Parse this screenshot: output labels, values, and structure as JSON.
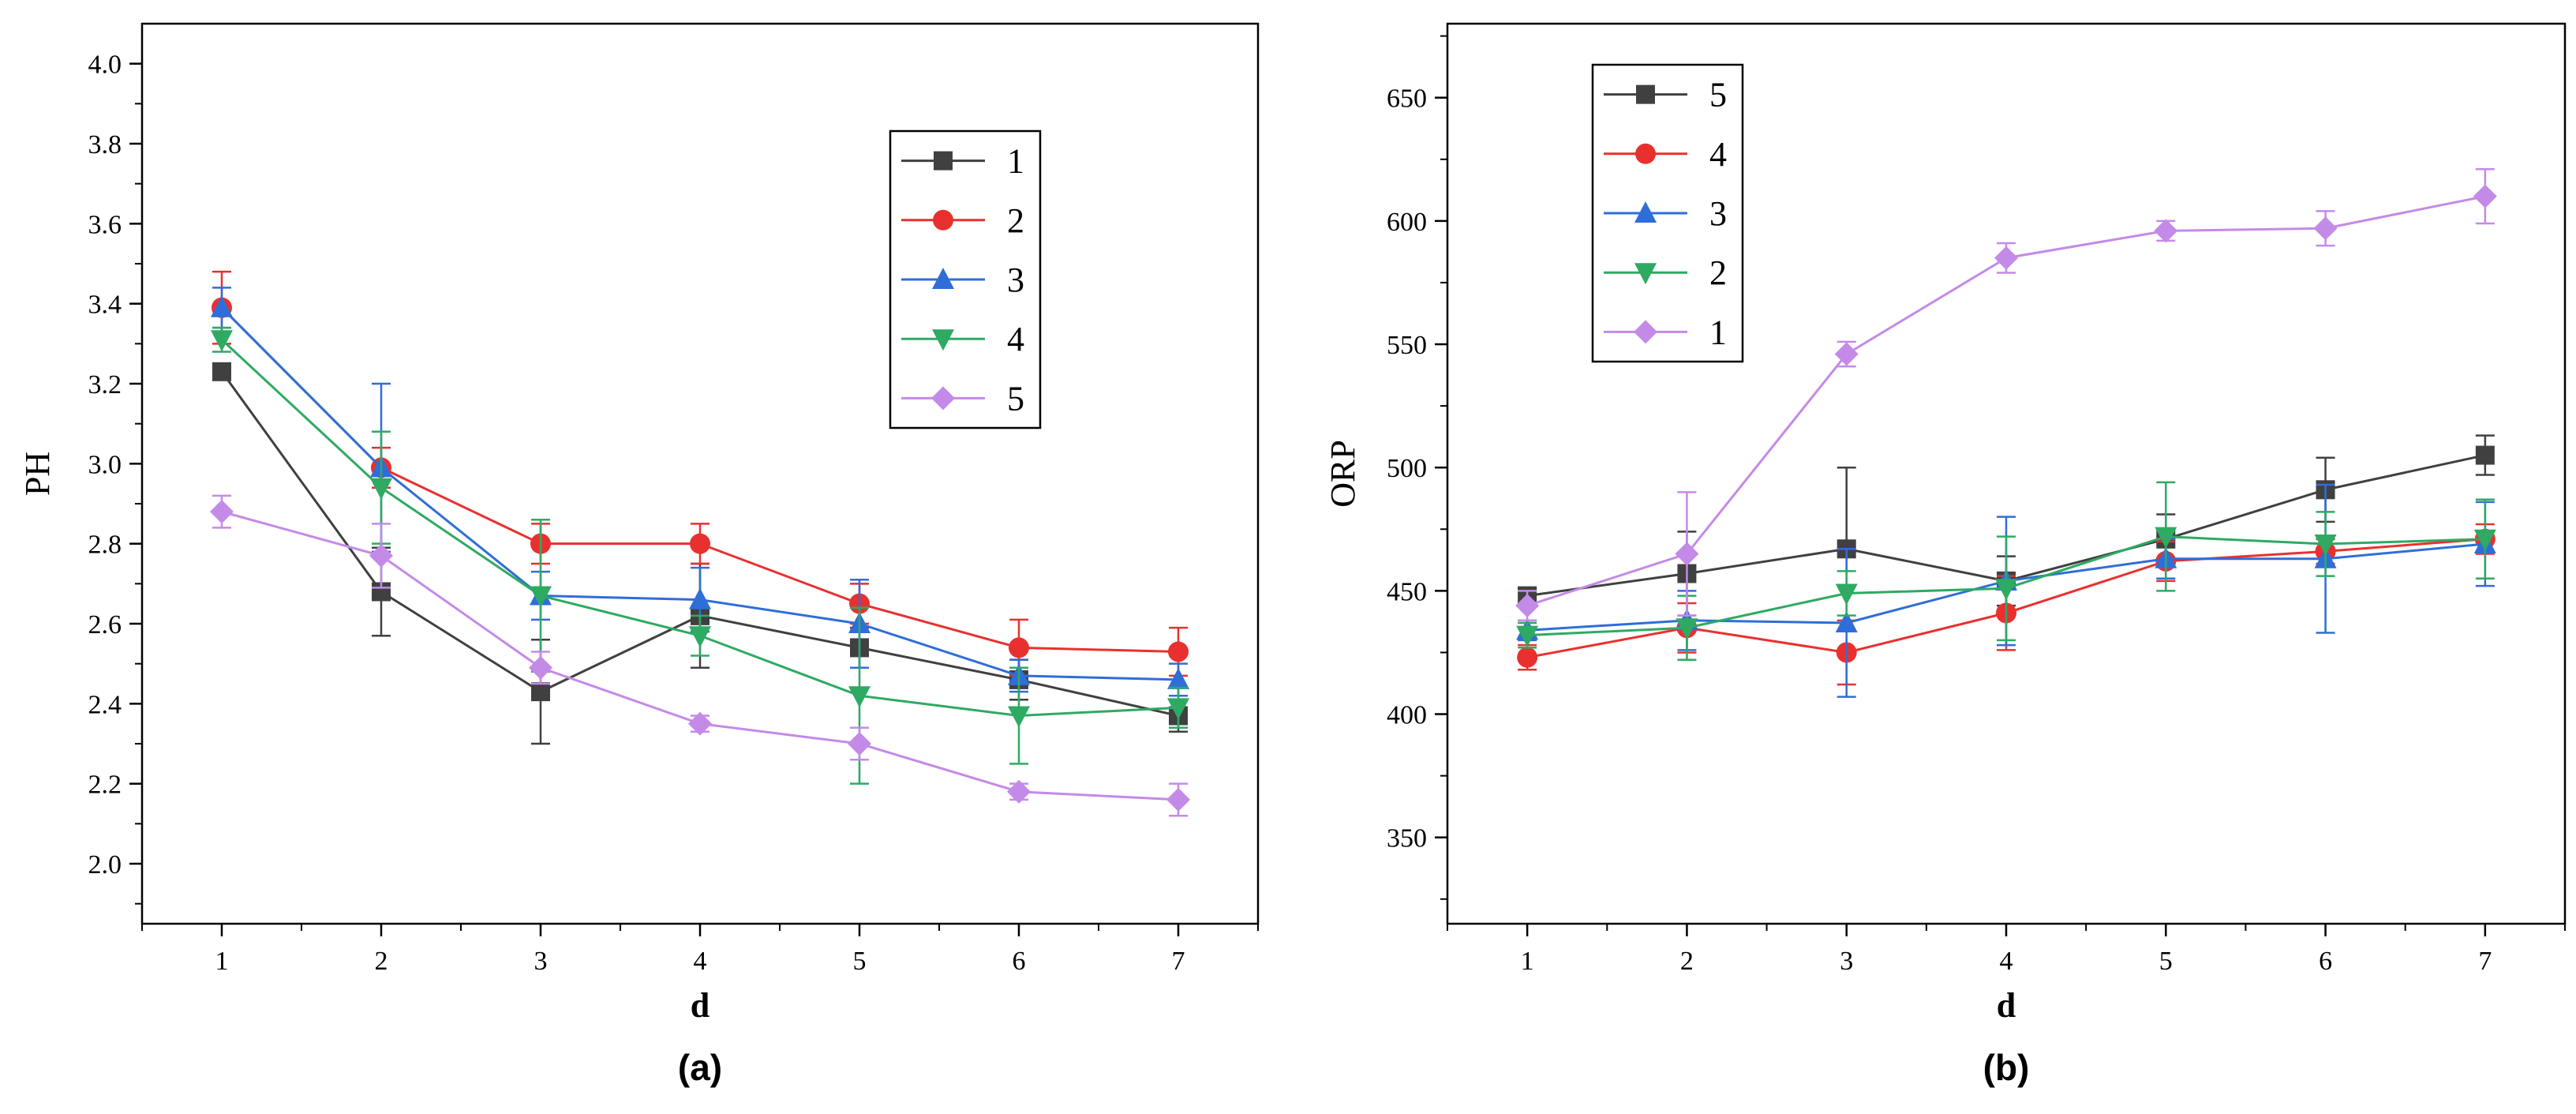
{
  "chart_data": [
    {
      "type": "line",
      "panel_label": "(a)",
      "xlabel": "d",
      "ylabel": "PH",
      "x": [
        1,
        2,
        3,
        4,
        5,
        6,
        7
      ],
      "xlim": [
        0.5,
        7.5
      ],
      "ylim": [
        1.85,
        4.1
      ],
      "yticks": [
        2.0,
        2.2,
        2.4,
        2.6,
        2.8,
        3.0,
        3.2,
        3.4,
        3.6,
        3.8,
        4.0
      ],
      "ytick_labels": [
        "2.0",
        "2.2",
        "2.4",
        "2.6",
        "2.8",
        "3.0",
        "3.2",
        "3.4",
        "3.6",
        "3.8",
        "4.0"
      ],
      "xtick_labels": [
        "1",
        "2",
        "3",
        "4",
        "5",
        "6",
        "7"
      ],
      "legend_position": "top-right",
      "grid": false,
      "series": [
        {
          "name": "1",
          "color": "#404040",
          "marker": "square",
          "values": [
            3.23,
            2.68,
            2.43,
            2.62,
            2.54,
            2.46,
            2.37
          ],
          "errors": [
            0.02,
            0.11,
            0.13,
            0.13,
            0.05,
            0.05,
            0.04
          ]
        },
        {
          "name": "2",
          "color": "#e8312f",
          "marker": "circle",
          "values": [
            3.39,
            2.99,
            2.8,
            2.8,
            2.65,
            2.54,
            2.53
          ],
          "errors": [
            0.09,
            0.05,
            0.05,
            0.05,
            0.05,
            0.07,
            0.06
          ]
        },
        {
          "name": "3",
          "color": "#2f6ed8",
          "marker": "triangle-up",
          "values": [
            3.39,
            2.99,
            2.67,
            2.66,
            2.6,
            2.47,
            2.46
          ],
          "errors": [
            0.05,
            0.21,
            0.06,
            0.08,
            0.11,
            0.04,
            0.04
          ]
        },
        {
          "name": "4",
          "color": "#2eaa62",
          "marker": "triangle-down",
          "values": [
            3.31,
            2.94,
            2.67,
            2.57,
            2.42,
            2.37,
            2.39
          ],
          "errors": [
            0.03,
            0.14,
            0.19,
            0.05,
            0.22,
            0.12,
            0.05
          ]
        },
        {
          "name": "5",
          "color": "#c48ae8",
          "marker": "diamond",
          "values": [
            2.88,
            2.77,
            2.49,
            2.35,
            2.3,
            2.18,
            2.16
          ],
          "errors": [
            0.04,
            0.08,
            0.04,
            0.02,
            0.04,
            0.02,
            0.04
          ]
        }
      ]
    },
    {
      "type": "line",
      "panel_label": "(b)",
      "xlabel": "d",
      "ylabel": "ORP",
      "x": [
        1,
        2,
        3,
        4,
        5,
        6,
        7
      ],
      "xlim": [
        0.5,
        7.5
      ],
      "ylim": [
        315,
        680
      ],
      "yticks": [
        350,
        400,
        450,
        500,
        550,
        600,
        650
      ],
      "ytick_labels": [
        "350",
        "400",
        "450",
        "500",
        "550",
        "600",
        "650"
      ],
      "xtick_labels": [
        "1",
        "2",
        "3",
        "4",
        "5",
        "6",
        "7"
      ],
      "legend_position": "top-left",
      "grid": false,
      "series": [
        {
          "name": "5",
          "color": "#404040",
          "marker": "square",
          "values": [
            448,
            457,
            467,
            454,
            471,
            491,
            505
          ],
          "errors": [
            3,
            17,
            33,
            10,
            10,
            13,
            8
          ]
        },
        {
          "name": "4",
          "color": "#e8312f",
          "marker": "circle",
          "values": [
            423,
            435,
            425,
            441,
            462,
            466,
            471
          ],
          "errors": [
            5,
            10,
            13,
            15,
            8,
            5,
            6
          ]
        },
        {
          "name": "3",
          "color": "#2f6ed8",
          "marker": "triangle-up",
          "values": [
            434,
            438,
            437,
            454,
            463,
            463,
            469
          ],
          "errors": [
            4,
            12,
            30,
            26,
            8,
            30,
            17
          ]
        },
        {
          "name": "2",
          "color": "#2eaa62",
          "marker": "triangle-down",
          "values": [
            432,
            435,
            449,
            451,
            472,
            469,
            471
          ],
          "errors": [
            5,
            13,
            9,
            21,
            22,
            13,
            16
          ]
        },
        {
          "name": "1",
          "color": "#c48ae8",
          "marker": "diamond",
          "values": [
            444,
            465,
            546,
            585,
            596,
            597,
            610
          ],
          "errors": [
            6,
            25,
            5,
            6,
            4,
            7,
            11
          ]
        }
      ]
    }
  ]
}
